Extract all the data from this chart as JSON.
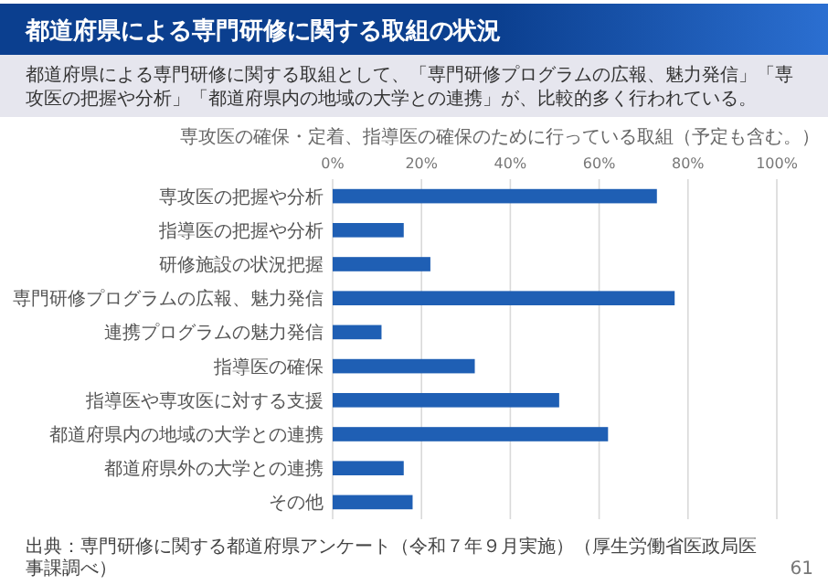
{
  "chart_data": {
    "type": "bar",
    "orientation": "horizontal",
    "title": "都道府県による専門研修に関する取組の状況",
    "subtitle": "都道府県による専門研修に関する取組として、「専門研修プログラムの広報、魅力発信」「専攻医の把握や分析」「都道府県内の地域の大学との連携」が、比較的多く行われている。",
    "annotations": [
      "専攻医の確保・定着、指導医の確保のために行っている取組（予定も含む。）",
      "出典：専門研修に関する都道府県アンケート（令和７年９月実施）（厚生労働省医政局医事課調べ）",
      "61"
    ],
    "categories": [
      "専攻医の把握や分析",
      "指導医の把握や分析",
      "研修施設の状況把握",
      "専門研修プログラムの広報、魅力発信",
      "連携プログラムの魅力発信",
      "指導医の確保",
      "指導医や専攻医に対する支援",
      "都道府県内の地域の大学との連携",
      "都道府県外の大学との連携",
      "その他"
    ],
    "values": [
      73,
      16,
      22,
      77,
      11,
      32,
      51,
      62,
      16,
      18
    ],
    "color": "#1f5fb4",
    "xlim": [
      0,
      100
    ],
    "xticks": [
      {
        "value": 0,
        "label": "0%"
      },
      {
        "value": 20,
        "label": "20%"
      },
      {
        "value": 40,
        "label": "40%"
      },
      {
        "value": 60,
        "label": "60%"
      },
      {
        "value": 80,
        "label": "80%"
      },
      {
        "value": 100,
        "label": "100%"
      }
    ],
    "grid": "x"
  }
}
